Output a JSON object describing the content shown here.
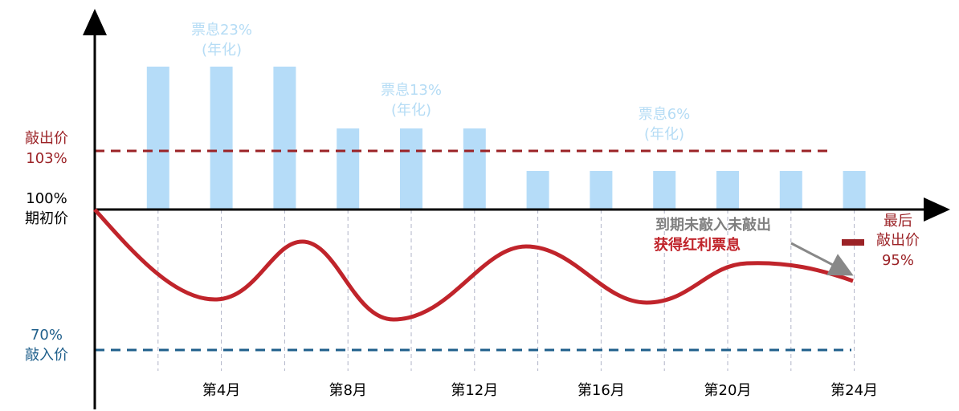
{
  "y_labels": {
    "knock_out": [
      "敲出价",
      "103%"
    ],
    "initial": [
      "100%",
      "期初价"
    ],
    "knock_in": [
      "70%",
      "敲入价"
    ]
  },
  "coupons": [
    {
      "rate": "票息23%",
      "note": "(年化)"
    },
    {
      "rate": "票息13%",
      "note": "(年化)"
    },
    {
      "rate": "票息6%",
      "note": "(年化)"
    }
  ],
  "annotation": {
    "line1": "到期未敲入未敲出",
    "line2": "获得红利票息"
  },
  "final": [
    "最后",
    "敲出价",
    "95%"
  ],
  "x_labels": [
    "第4月",
    "第8月",
    "第12月",
    "第16月",
    "第20月",
    "第24月"
  ]
}
